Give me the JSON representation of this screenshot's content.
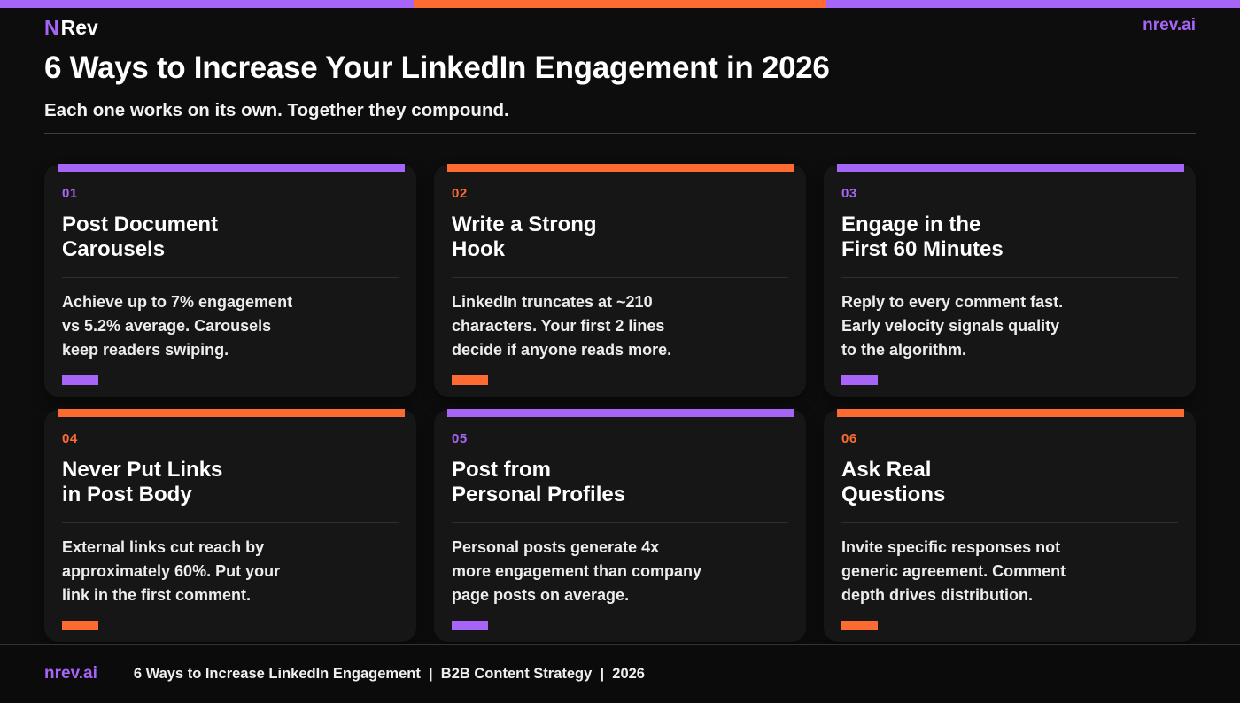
{
  "colors": {
    "purple": "#a765f7",
    "orange": "#fd6b33",
    "background": "#0d0d0d",
    "card": "#161616"
  },
  "top_stripe": {
    "segments": [
      "purple",
      "orange",
      "purple"
    ]
  },
  "header": {
    "logo_n": "N",
    "logo_rev": "Rev",
    "site": "nrev.ai",
    "title": "6 Ways to Increase Your LinkedIn Engagement in 2026",
    "subtitle": "Each one works on its own. Together they compound."
  },
  "cards": [
    {
      "number": "01",
      "accent": "purple",
      "title": "Post Document\nCarousels",
      "body": "Achieve up to 7% engagement\nvs 5.2% average. Carousels\nkeep readers swiping."
    },
    {
      "number": "02",
      "accent": "orange",
      "title": "Write a Strong\nHook",
      "body": "LinkedIn truncates at ~210\ncharacters. Your first 2 lines\ndecide if anyone reads more."
    },
    {
      "number": "03",
      "accent": "purple",
      "title": "Engage in the\nFirst 60 Minutes",
      "body": "Reply to every comment fast.\nEarly velocity signals quality\nto the algorithm."
    },
    {
      "number": "04",
      "accent": "orange",
      "title": "Never Put Links\nin Post Body",
      "body": "External links cut reach by\napproximately 60%. Put your\nlink in the first comment."
    },
    {
      "number": "05",
      "accent": "purple",
      "title": "Post from\nPersonal Profiles",
      "body": "Personal posts generate 4x\nmore engagement than company\npage posts on average."
    },
    {
      "number": "06",
      "accent": "orange",
      "title": "Ask Real\nQuestions",
      "body": "Invite specific responses not\ngeneric agreement. Comment\ndepth drives distribution."
    }
  ],
  "footer": {
    "brand": "nrev.ai",
    "text": "6 Ways to Increase LinkedIn Engagement  |  B2B Content Strategy  |  2026"
  }
}
